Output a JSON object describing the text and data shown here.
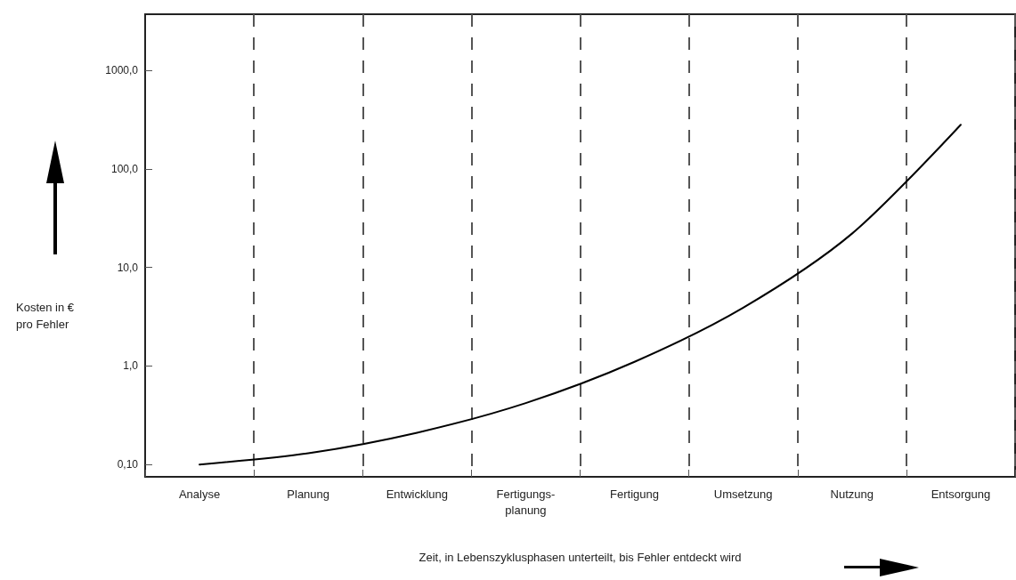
{
  "chart_data": {
    "type": "line",
    "xlabel": "Zeit, in Lebenszyklusphasen unterteilt, bis Fehler entdeckt wird",
    "ylabel": "Kosten in € pro Fehler",
    "categories": [
      "Analyse",
      "Planung",
      "Entwicklung",
      "Fertigungs-planung",
      "Fertigung",
      "Umsetzung",
      "Nutzung",
      "Entsorgung"
    ],
    "series": [
      {
        "color": "#000000",
        "values": [
          0.1,
          0.13,
          0.21,
          0.42,
          1.1,
          3.9,
          22,
          280
        ]
      }
    ],
    "log": "y",
    "ylim": [
      0.075,
      3700
    ],
    "yticks": [
      {
        "value": 0.1,
        "label": "0,10"
      },
      {
        "value": 1,
        "label": "1,0"
      },
      {
        "value": 10,
        "label": "10,0"
      },
      {
        "value": 100,
        "label": "100,0"
      },
      {
        "value": 1000,
        "label": "1000,0"
      }
    ],
    "grid": "x",
    "marker": "none",
    "line_style": "solid"
  }
}
